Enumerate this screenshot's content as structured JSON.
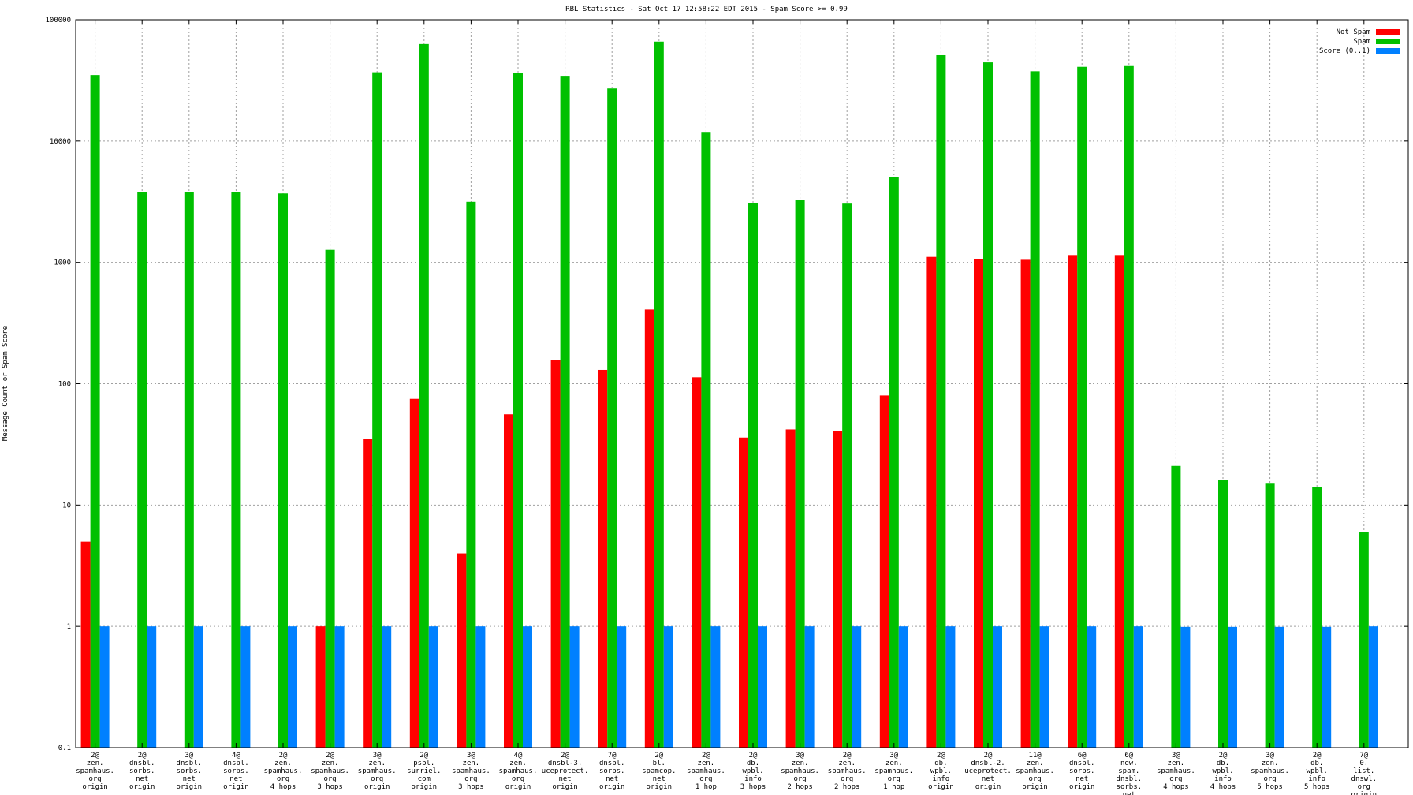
{
  "chart_data": {
    "type": "bar",
    "title": "RBL Statistics - Sat Oct 17 12:58:22 EDT 2015 - Spam Score >= 0.99",
    "xlabel": "",
    "ylabel": "Message Count or Spam Score",
    "yscale": "log",
    "ylim": [
      0.1,
      100000
    ],
    "yticks": [
      "0.1",
      "1",
      "10",
      "100",
      "1000",
      "10000",
      "100000"
    ],
    "grid": true,
    "legend_position": "top-right",
    "categories": [
      [
        "2@",
        "zen.",
        "spamhaus.",
        "org",
        "origin"
      ],
      [
        "2@",
        "dnsbl.",
        "sorbs.",
        "net",
        "origin"
      ],
      [
        "3@",
        "dnsbl.",
        "sorbs.",
        "net",
        "origin"
      ],
      [
        "4@",
        "dnsbl.",
        "sorbs.",
        "net",
        "origin"
      ],
      [
        "2@",
        "zen.",
        "spamhaus.",
        "org",
        "4 hops"
      ],
      [
        "2@",
        "zen.",
        "spamhaus.",
        "org",
        "3 hops"
      ],
      [
        "3@",
        "zen.",
        "spamhaus.",
        "org",
        "origin"
      ],
      [
        "2@",
        "psbl.",
        "surriel.",
        "com",
        "origin"
      ],
      [
        "3@",
        "zen.",
        "spamhaus.",
        "org",
        "3 hops"
      ],
      [
        "4@",
        "zen.",
        "spamhaus.",
        "org",
        "origin"
      ],
      [
        "2@",
        "dnsbl-3.",
        "uceprotect.",
        "net",
        "origin"
      ],
      [
        "7@",
        "dnsbl.",
        "sorbs.",
        "net",
        "origin"
      ],
      [
        "2@",
        "bl.",
        "spamcop.",
        "net",
        "origin"
      ],
      [
        "2@",
        "zen.",
        "spamhaus.",
        "org",
        "1 hop"
      ],
      [
        "2@",
        "db.",
        "wpbl.",
        "info",
        "3 hops"
      ],
      [
        "3@",
        "zen.",
        "spamhaus.",
        "org",
        "2 hops"
      ],
      [
        "2@",
        "zen.",
        "spamhaus.",
        "org",
        "2 hops"
      ],
      [
        "3@",
        "zen.",
        "spamhaus.",
        "org",
        "1 hop"
      ],
      [
        "2@",
        "db.",
        "wpbl.",
        "info",
        "origin"
      ],
      [
        "2@",
        "dnsbl-2.",
        "uceprotect.",
        "net",
        "origin"
      ],
      [
        "11@",
        "zen.",
        "spamhaus.",
        "org",
        "origin"
      ],
      [
        "6@",
        "dnsbl.",
        "sorbs.",
        "net",
        "origin"
      ],
      [
        "6@",
        "new.",
        "spam.",
        "dnsbl.",
        "sorbs.",
        "net",
        "origin"
      ],
      [
        "3@",
        "zen.",
        "spamhaus.",
        "org",
        "4 hops"
      ],
      [
        "2@",
        "db.",
        "wpbl.",
        "info",
        "4 hops"
      ],
      [
        "3@",
        "zen.",
        "spamhaus.",
        "org",
        "5 hops"
      ],
      [
        "2@",
        "db.",
        "wpbl.",
        "info",
        "5 hops"
      ],
      [
        "7@",
        "0.",
        "list.",
        "dnswl.",
        "org",
        "origin"
      ]
    ],
    "series": [
      {
        "name": "Not Spam",
        "color": "#ff0000",
        "values": [
          5,
          null,
          null,
          null,
          null,
          1,
          35,
          75,
          4,
          56,
          156,
          130,
          409,
          113,
          36,
          42,
          41,
          80,
          1110,
          1070,
          1050,
          1150,
          1150,
          null,
          null,
          null,
          null,
          null
        ]
      },
      {
        "name": "Spam",
        "color": "#00c000",
        "values": [
          35000,
          3820,
          3820,
          3820,
          3700,
          1270,
          36900,
          63000,
          3160,
          36500,
          34500,
          27100,
          66000,
          11900,
          3100,
          3270,
          3050,
          5030,
          51000,
          44500,
          37600,
          40900,
          41500,
          21,
          16,
          15,
          14,
          6
        ]
      },
      {
        "name": "Score (0..1)",
        "color": "#0080ff",
        "values": [
          1,
          1,
          1,
          1,
          1,
          1,
          1,
          1,
          1,
          1,
          1,
          1,
          1,
          1,
          1,
          1,
          1,
          1,
          1,
          1,
          1,
          1,
          1,
          0.99,
          0.99,
          0.99,
          0.99,
          1
        ]
      }
    ]
  }
}
